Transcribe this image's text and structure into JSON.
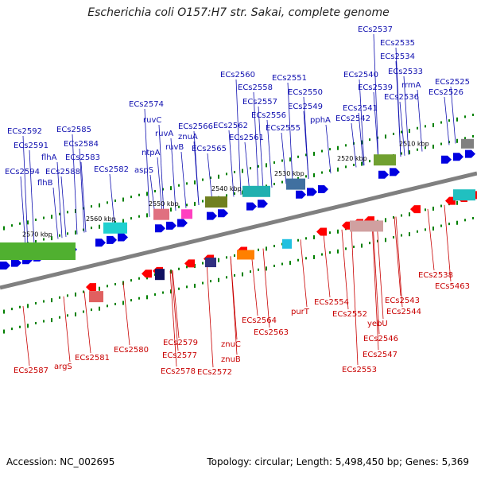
{
  "title": "Escherichia coli O157:H7 str. Sakai, complete genome",
  "footer": {
    "accession": "Accession: NC_002695",
    "summary": "Topology: circular; Length: 5,498,450 bp; Genes: 5,369"
  },
  "colors": {
    "forward_label": "#1010b0",
    "reverse_label": "#c80000",
    "forward_arrow": "#0000e0",
    "reverse_arrow": "#ff0000",
    "backbone": "#808080",
    "tick": "#008000"
  },
  "scale_labels": [
    "2510 kbp",
    "2520 kbp",
    "2530 kbp",
    "2540 kbp",
    "2550 kbp",
    "2560 kbp",
    "2570 kbp"
  ],
  "upper_labels": [
    {
      "text": "ECs2537"
    },
    {
      "text": "ECs2535"
    },
    {
      "text": "ECs2534"
    },
    {
      "text": "ECs2533"
    },
    {
      "text": "rrmA"
    },
    {
      "text": "ECs2536"
    },
    {
      "text": "ECs2540"
    },
    {
      "text": "ECs2539"
    },
    {
      "text": "ECs2525"
    },
    {
      "text": "ECs2526"
    },
    {
      "text": "ECs2551"
    },
    {
      "text": "ECs2550"
    },
    {
      "text": "ECs2549"
    },
    {
      "text": "ECs2541"
    },
    {
      "text": "ECs2542"
    },
    {
      "text": "ECs2560"
    },
    {
      "text": "ECs2558"
    },
    {
      "text": "ECs2557"
    },
    {
      "text": "ECs2556"
    },
    {
      "text": "ECs2555"
    },
    {
      "text": "pphA"
    },
    {
      "text": "ECs2574"
    },
    {
      "text": "ruvC"
    },
    {
      "text": "ruvA"
    },
    {
      "text": "ECs2566"
    },
    {
      "text": "ECs2562"
    },
    {
      "text": "znuA"
    },
    {
      "text": "ruvB"
    },
    {
      "text": "ECs2561"
    },
    {
      "text": "ntpA"
    },
    {
      "text": "ECs2565"
    },
    {
      "text": "ECs2592"
    },
    {
      "text": "ECs2585"
    },
    {
      "text": "ECs2591"
    },
    {
      "text": "ECs2584"
    },
    {
      "text": "flhA"
    },
    {
      "text": "ECs2583"
    },
    {
      "text": "ECs2594"
    },
    {
      "text": "ECs2588"
    },
    {
      "text": "ECs2582"
    },
    {
      "text": "aspS"
    },
    {
      "text": "flhB"
    }
  ],
  "lower_labels": [
    {
      "text": "ECs2538"
    },
    {
      "text": "ECs5463"
    },
    {
      "text": "ECs2543"
    },
    {
      "text": "ECs2554"
    },
    {
      "text": "ECs2544"
    },
    {
      "text": "purT"
    },
    {
      "text": "ECs2552"
    },
    {
      "text": "yebU"
    },
    {
      "text": "ECs2564"
    },
    {
      "text": "ECs2546"
    },
    {
      "text": "ECs2563"
    },
    {
      "text": "ECs2547"
    },
    {
      "text": "ECs2579"
    },
    {
      "text": "ECs2580"
    },
    {
      "text": "ECs2553"
    },
    {
      "text": "ECs2581"
    },
    {
      "text": "ECs2577"
    },
    {
      "text": "znuC"
    },
    {
      "text": "argS"
    },
    {
      "text": "ECs2587"
    },
    {
      "text": "ECs2578"
    },
    {
      "text": "ECs2572"
    },
    {
      "text": "znuB"
    }
  ]
}
